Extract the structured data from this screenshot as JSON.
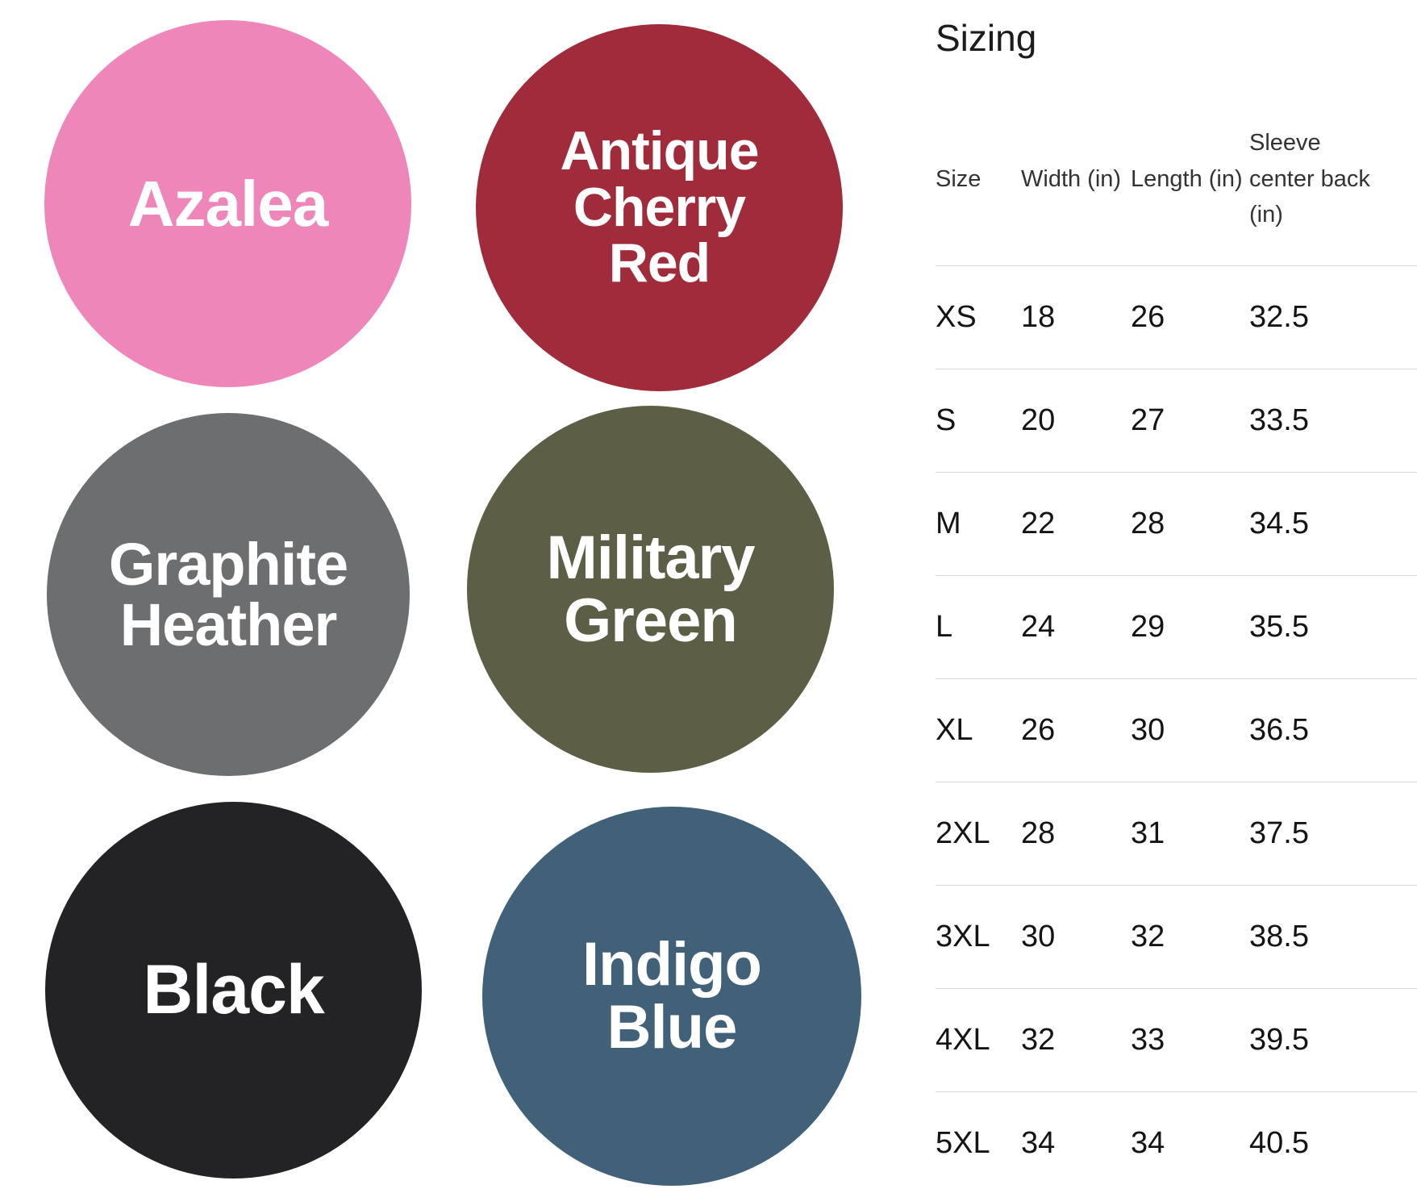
{
  "swatches": [
    {
      "name": "Azalea",
      "color": "#ee86b9",
      "text_color": "#ffffff",
      "lines": [
        "Azalea"
      ]
    },
    {
      "name": "Antique Cherry Red",
      "color": "#a02b3b",
      "text_color": "#ffffff",
      "lines": [
        "Antique",
        "Cherry",
        "Red"
      ]
    },
    {
      "name": "Graphite Heather",
      "color": "#6d6e70",
      "text_color": "#ffffff",
      "lines": [
        "Graphite",
        "Heather"
      ]
    },
    {
      "name": "Military Green",
      "color": "#5c5e45",
      "text_color": "#ffffff",
      "lines": [
        "Military",
        "Green"
      ]
    },
    {
      "name": "Black",
      "color": "#232225",
      "text_color": "#ffffff",
      "lines": [
        "Black"
      ]
    },
    {
      "name": "Indigo Blue",
      "color": "#416179",
      "text_color": "#ffffff",
      "lines": [
        "Indigo",
        "Blue"
      ]
    }
  ],
  "sizing": {
    "title": "Sizing",
    "columns": [
      "Size",
      "Width (in)",
      "Length (in)",
      "Sleeve center back (in)"
    ],
    "rows": [
      {
        "size": "XS",
        "width": "18",
        "length": "26",
        "sleeve": "32.5"
      },
      {
        "size": "S",
        "width": "20",
        "length": "27",
        "sleeve": "33.5"
      },
      {
        "size": "M",
        "width": "22",
        "length": "28",
        "sleeve": "34.5"
      },
      {
        "size": "L",
        "width": "24",
        "length": "29",
        "sleeve": "35.5"
      },
      {
        "size": "XL",
        "width": "26",
        "length": "30",
        "sleeve": "36.5"
      },
      {
        "size": "2XL",
        "width": "28",
        "length": "31",
        "sleeve": "37.5"
      },
      {
        "size": "3XL",
        "width": "30",
        "length": "32",
        "sleeve": "38.5"
      },
      {
        "size": "4XL",
        "width": "32",
        "length": "33",
        "sleeve": "39.5"
      },
      {
        "size": "5XL",
        "width": "34",
        "length": "34",
        "sleeve": "40.5"
      }
    ]
  }
}
